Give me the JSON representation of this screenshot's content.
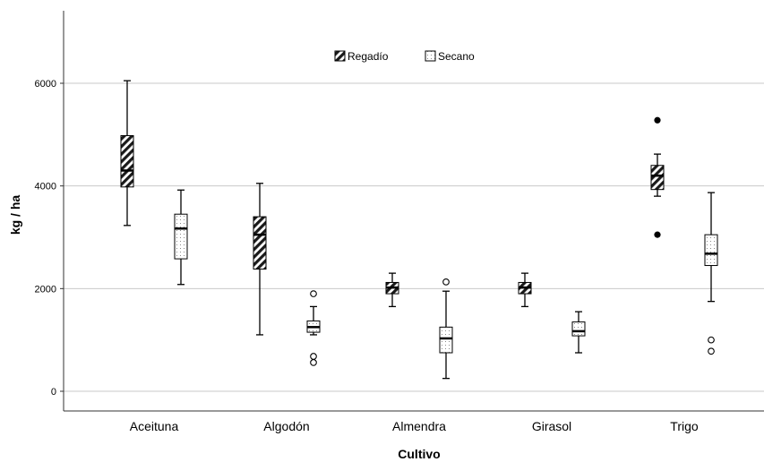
{
  "chart_data": {
    "type": "boxplot",
    "xlabel": "Cultivo",
    "ylabel": "kg / ha",
    "ylim": [
      -400,
      7300
    ],
    "yticks": [
      0,
      2000,
      4000,
      6000
    ],
    "grid": "horizontal",
    "legend_position": "top-center",
    "categories": [
      "Aceituna",
      "Algodón",
      "Almendra",
      "Girasol",
      "Trigo"
    ],
    "series": [
      {
        "name": "Regadío",
        "pattern": "diagonal-hatch",
        "boxes": [
          {
            "whisker_low": 3230,
            "q1": 3980,
            "median": 4300,
            "q3": 4980,
            "whisker_high": 6050,
            "outliers_filled": [],
            "outliers_open": []
          },
          {
            "whisker_low": 1100,
            "q1": 2380,
            "median": 3050,
            "q3": 3400,
            "whisker_high": 4050,
            "outliers_filled": [],
            "outliers_open": []
          },
          {
            "whisker_low": 1650,
            "q1": 1900,
            "median": 2020,
            "q3": 2120,
            "whisker_high": 2300,
            "outliers_filled": [],
            "outliers_open": []
          },
          {
            "whisker_low": 1650,
            "q1": 1900,
            "median": 2020,
            "q3": 2120,
            "whisker_high": 2300,
            "outliers_filled": [],
            "outliers_open": []
          },
          {
            "whisker_low": 3800,
            "q1": 3930,
            "median": 4200,
            "q3": 4400,
            "whisker_high": 4620,
            "outliers_filled": [
              5280,
              3050
            ],
            "outliers_open": []
          }
        ]
      },
      {
        "name": "Secano",
        "pattern": "dots",
        "boxes": [
          {
            "whisker_low": 2080,
            "q1": 2580,
            "median": 3170,
            "q3": 3450,
            "whisker_high": 3920,
            "outliers_filled": [],
            "outliers_open": []
          },
          {
            "whisker_low": 1100,
            "q1": 1150,
            "median": 1250,
            "q3": 1370,
            "whisker_high": 1650,
            "outliers_filled": [],
            "outliers_open": [
              1900,
              680,
              560
            ]
          },
          {
            "whisker_low": 250,
            "q1": 750,
            "median": 1030,
            "q3": 1250,
            "whisker_high": 1950,
            "outliers_filled": [],
            "outliers_open": [
              2130
            ]
          },
          {
            "whisker_low": 750,
            "q1": 1080,
            "median": 1170,
            "q3": 1350,
            "whisker_high": 1550,
            "outliers_filled": [],
            "outliers_open": []
          },
          {
            "whisker_low": 1750,
            "q1": 2450,
            "median": 2680,
            "q3": 3050,
            "whisker_high": 3870,
            "outliers_filled": [],
            "outliers_open": [
              1000,
              780
            ]
          }
        ]
      }
    ]
  }
}
